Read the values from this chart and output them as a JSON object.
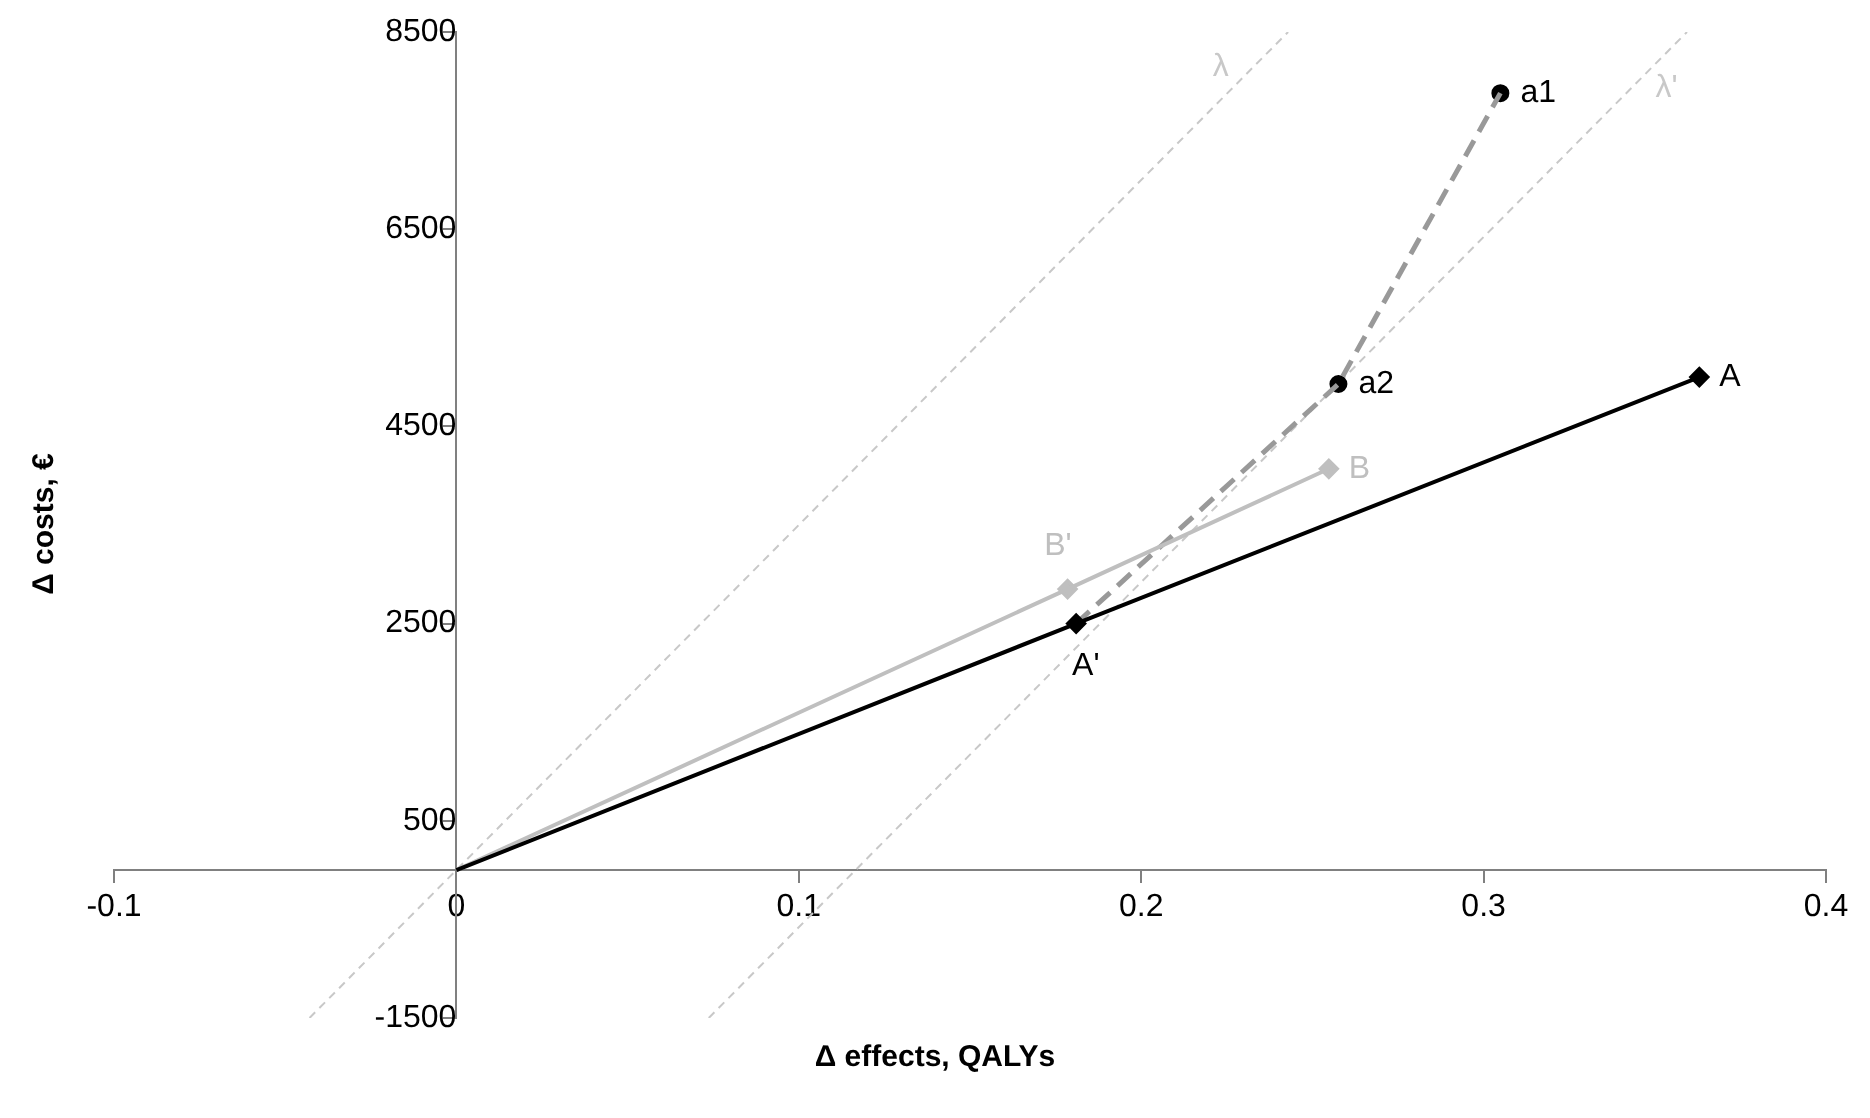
{
  "chart_data": {
    "type": "line",
    "xlabel": "Δ effects, QALYs",
    "ylabel": "Δ costs, €",
    "xlim": [
      -0.1,
      0.4
    ],
    "xticks": [
      -0.1,
      0,
      0.1,
      0.2,
      0.3,
      0.4
    ],
    "ylim": [
      -1500,
      8500
    ],
    "yticks": [
      -1500,
      500,
      2500,
      4500,
      6500,
      8500
    ],
    "grid": false,
    "legend": false,
    "series": [
      {
        "type": "line",
        "color": "#000000",
        "x": [
          0,
          0.181,
          0.363
        ],
        "values": [
          0,
          2500,
          5000
        ],
        "marker": "none",
        "line_style": "solid"
      },
      {
        "type": "scatter",
        "color": "#000000",
        "x": [
          0.181,
          0.363
        ],
        "values": [
          2500,
          5000
        ],
        "marker": "diamond"
      },
      {
        "type": "line",
        "color": "#bfbfbf",
        "x": [
          0,
          0.1785,
          0.2548
        ],
        "values": [
          0,
          2850,
          4070
        ],
        "marker": "none",
        "line_style": "solid"
      },
      {
        "type": "scatter",
        "color": "#bfbfbf",
        "x": [
          0.1785,
          0.2548
        ],
        "values": [
          2850,
          4070
        ],
        "marker": "diamond"
      },
      {
        "type": "line",
        "color": "#999999",
        "x": [
          0.181,
          0.2576,
          0.3049
        ],
        "values": [
          2500,
          4930,
          7880
        ],
        "marker": "none",
        "line_style": "dashed"
      },
      {
        "type": "scatter",
        "color": "#000000",
        "x": [
          0.2576,
          0.3049
        ],
        "values": [
          4930,
          7880
        ],
        "marker": "circle"
      },
      {
        "type": "line",
        "color": "#c8c8c8",
        "x": [
          -0.0429,
          0.2429
        ],
        "values": [
          -1500,
          8500
        ],
        "marker": "none",
        "line_style": "dotted"
      },
      {
        "type": "line",
        "color": "#c8c8c8",
        "x": [
          0.0737,
          0.3594
        ],
        "values": [
          -1500,
          8500
        ],
        "marker": "none",
        "line_style": "dotted"
      }
    ],
    "annotations": [
      {
        "text": "A",
        "x": 0.363,
        "y": 5000
      },
      {
        "text": "A'",
        "x": 0.181,
        "y": 2500
      },
      {
        "text": "B",
        "x": 0.2548,
        "y": 4070
      },
      {
        "text": "B'",
        "x": 0.1785,
        "y": 2850
      },
      {
        "text": "a1",
        "x": 0.3049,
        "y": 7880
      },
      {
        "text": "a2",
        "x": 0.2576,
        "y": 4930
      },
      {
        "text": "λ",
        "x": 0.2326,
        "y": 8140
      },
      {
        "text": "λ'",
        "x": 0.3432,
        "y": 7930
      }
    ]
  }
}
